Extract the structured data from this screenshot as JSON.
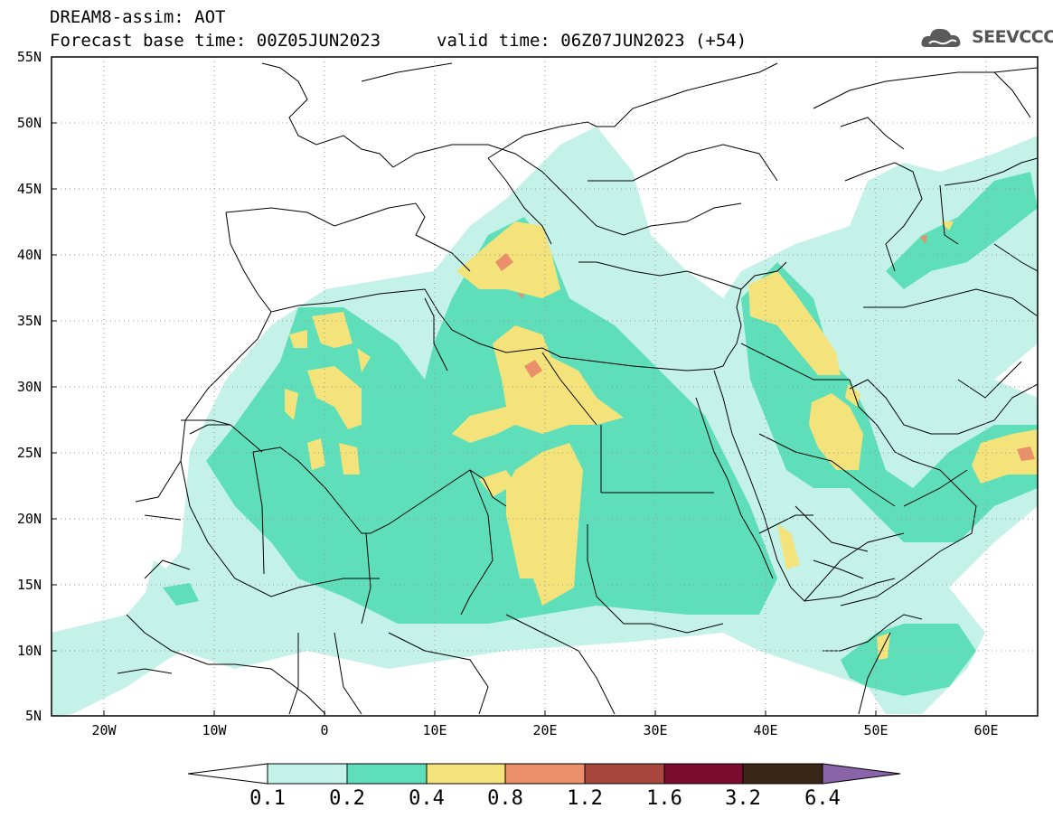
{
  "header": {
    "title": "DREAM8-assim: AOT",
    "base_time": "Forecast base time: 00Z05JUN2023",
    "valid_time": "valid time: 06Z07JUN2023 (+54)",
    "logo_text": "SEEVCCC"
  },
  "map": {
    "lat_labels": [
      "55N",
      "50N",
      "45N",
      "40N",
      "35N",
      "30N",
      "25N",
      "20N",
      "15N",
      "10N",
      "5N"
    ],
    "lon_labels": [
      "20W",
      "10W",
      "0",
      "10E",
      "20E",
      "30E",
      "40E",
      "50E",
      "60E"
    ]
  },
  "colorbar": {
    "labels": [
      "0.1",
      "0.2",
      "0.4",
      "0.8",
      "1.2",
      "1.6",
      "3.2",
      "6.4"
    ],
    "colors": [
      "#c4f2e8",
      "#5fdfb9",
      "#f3e37a",
      "#e98f69",
      "#a8473d",
      "#7a0d2f",
      "#3a2616",
      "#8b63a8"
    ]
  }
}
